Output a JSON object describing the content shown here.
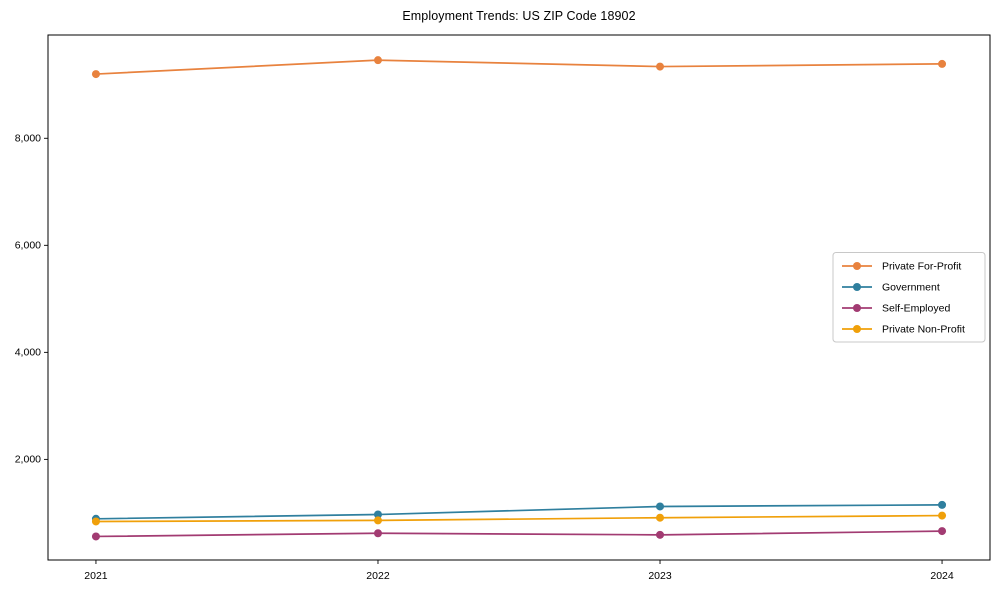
{
  "title": "Employment Trends: US ZIP Code 18902",
  "chart_data": {
    "type": "line",
    "title": "Employment Trends: US ZIP Code 18902",
    "xlabel": "",
    "ylabel": "",
    "x": [
      2021,
      2022,
      2023,
      2024
    ],
    "x_tick_labels": [
      "2021",
      "2022",
      "2023",
      "2024"
    ],
    "y_ticks": [
      2000,
      4000,
      6000,
      8000
    ],
    "y_tick_labels": [
      "2,000",
      "4,000",
      "6,000",
      "8,000"
    ],
    "xlim": [
      2020.83,
      2024.17
    ],
    "ylim": [
      120,
      9930
    ],
    "grid": false,
    "legend_position": "center-right",
    "series": [
      {
        "name": "Private For-Profit",
        "color": "#e8823e",
        "values": [
          9200,
          9460,
          9340,
          9390
        ]
      },
      {
        "name": "Government",
        "color": "#2f7f9e",
        "values": [
          890,
          970,
          1120,
          1150
        ]
      },
      {
        "name": "Self-Employed",
        "color": "#a23b72",
        "values": [
          560,
          620,
          590,
          660
        ]
      },
      {
        "name": "Private Non-Profit",
        "color": "#f0a00a",
        "values": [
          840,
          860,
          910,
          950
        ]
      }
    ],
    "frame_color": "#000000",
    "legend_border_color": "#c8c8c8",
    "legend_background": "#ffffff"
  }
}
